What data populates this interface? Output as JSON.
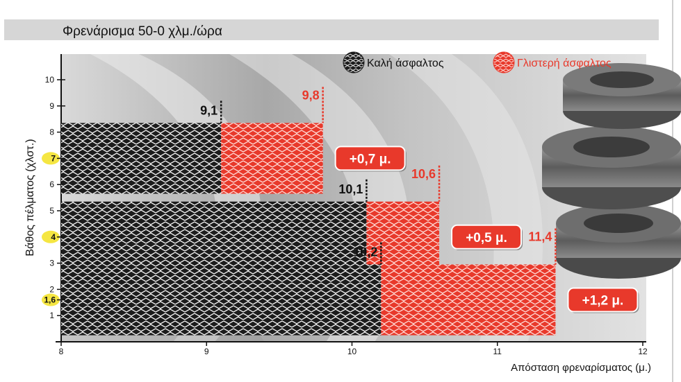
{
  "chart_data": {
    "type": "bar",
    "orientation": "horizontal",
    "title": "Φρενάρισμα 50-0 χλμ./ώρα",
    "xlabel": "Απόσταση φρεναρίσματος (μ.)",
    "ylabel": "Βάθος πέλματος (χλστ.)",
    "xlim": [
      8,
      12
    ],
    "ylim": [
      0,
      10.8
    ],
    "x_ticks": [
      "8",
      "9",
      "10",
      "11",
      "12"
    ],
    "y_ticks": [
      "1",
      "2",
      "3",
      "4",
      "5",
      "6",
      "7",
      "8",
      "9",
      "10"
    ],
    "legend_position": "top-right",
    "series": [
      {
        "name": "Καλή άσφαλτος",
        "color": "#1a1a1a"
      },
      {
        "name": "Γλιστερή άσφαλτος",
        "color": "#e8392b"
      }
    ],
    "categories": [
      "7",
      "4",
      "1,6"
    ],
    "depths": [
      7,
      4,
      1.6
    ],
    "good": [
      9.1,
      10.1,
      10.2
    ],
    "good_labels": [
      "9,1",
      "10,1",
      "10,2"
    ],
    "slippery": [
      9.8,
      10.6,
      11.4
    ],
    "slippery_labels": [
      "9,8",
      "10,6",
      "11,4"
    ],
    "difference_labels": [
      "+0,7 μ.",
      "+0,5 μ.",
      "+1,2 μ."
    ],
    "highlight_color": "#f5e642"
  }
}
